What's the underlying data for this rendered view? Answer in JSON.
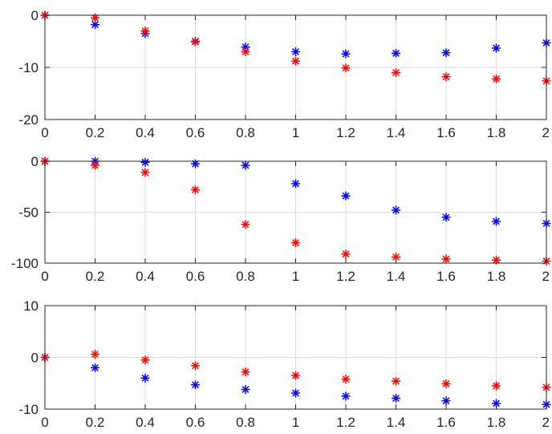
{
  "chart_data": [
    {
      "type": "scatter",
      "marker": "asterisk",
      "grid": true,
      "xlim": [
        0,
        2
      ],
      "ylim": [
        -20,
        0
      ],
      "xticks": [
        0,
        0.2,
        0.4,
        0.6,
        0.8,
        1,
        1.2,
        1.4,
        1.6,
        1.8,
        2
      ],
      "xtick_labels": [
        "0",
        "0.2",
        "0.4",
        "0.6",
        "0.8",
        "1",
        "1.2",
        "1.4",
        "1.6",
        "1.8",
        "2"
      ],
      "yticks": [
        -20,
        -10,
        0
      ],
      "ytick_labels": [
        "-20",
        "-10",
        "0"
      ],
      "x": [
        0,
        0.2,
        0.4,
        0.6,
        0.8,
        1,
        1.2,
        1.4,
        1.6,
        1.8,
        2
      ],
      "series": [
        {
          "color": "#0000ff",
          "values": [
            0,
            -1.8,
            -3.5,
            -5.0,
            -6.1,
            -7.0,
            -7.4,
            -7.3,
            -7.2,
            -6.3,
            -5.3
          ]
        },
        {
          "color": "#ff0000",
          "values": [
            0,
            -0.5,
            -3.0,
            -5.1,
            -7.0,
            -8.8,
            -10.1,
            -11.0,
            -11.8,
            -12.2,
            -12.6
          ]
        }
      ]
    },
    {
      "type": "scatter",
      "marker": "asterisk",
      "grid": true,
      "xlim": [
        0,
        2
      ],
      "ylim": [
        -100,
        0
      ],
      "xticks": [
        0,
        0.2,
        0.4,
        0.6,
        0.8,
        1,
        1.2,
        1.4,
        1.6,
        1.8,
        2
      ],
      "xtick_labels": [
        "0",
        "0.2",
        "0.4",
        "0.6",
        "0.8",
        "1",
        "1.2",
        "1.4",
        "1.6",
        "1.8",
        "2"
      ],
      "yticks": [
        -100,
        -50,
        0
      ],
      "ytick_labels": [
        "-100",
        "-50",
        "0"
      ],
      "x": [
        0,
        0.2,
        0.4,
        0.6,
        0.8,
        1,
        1.2,
        1.4,
        1.6,
        1.8,
        2
      ],
      "series": [
        {
          "color": "#0000ff",
          "values": [
            0,
            0,
            -1,
            -2.5,
            -4,
            -22,
            -34,
            -48,
            -55,
            -59,
            -61
          ]
        },
        {
          "color": "#ff0000",
          "values": [
            0,
            -4,
            -11,
            -28,
            -62,
            -80,
            -91,
            -94,
            -96,
            -97,
            -98
          ]
        }
      ]
    },
    {
      "type": "scatter",
      "marker": "asterisk",
      "grid": true,
      "xlim": [
        0,
        2
      ],
      "ylim": [
        -10,
        10
      ],
      "xticks": [
        0,
        0.2,
        0.4,
        0.6,
        0.8,
        1,
        1.2,
        1.4,
        1.6,
        1.8,
        2
      ],
      "xtick_labels": [
        "0",
        "0.2",
        "0.4",
        "0.6",
        "0.8",
        "1",
        "1.2",
        "1.4",
        "1.6",
        "1.8",
        "2"
      ],
      "yticks": [
        -10,
        0,
        10
      ],
      "ytick_labels": [
        "-10",
        "0",
        "10"
      ],
      "x": [
        0,
        0.2,
        0.4,
        0.6,
        0.8,
        1,
        1.2,
        1.4,
        1.6,
        1.8,
        2
      ],
      "series": [
        {
          "color": "#0000ff",
          "values": [
            0,
            -2.0,
            -4.0,
            -5.3,
            -6.2,
            -6.9,
            -7.5,
            -7.9,
            -8.4,
            -8.9,
            -9.1
          ]
        },
        {
          "color": "#ff0000",
          "values": [
            0,
            0.6,
            -0.5,
            -1.6,
            -2.8,
            -3.5,
            -4.2,
            -4.6,
            -5.1,
            -5.5,
            -5.8
          ]
        }
      ]
    }
  ]
}
